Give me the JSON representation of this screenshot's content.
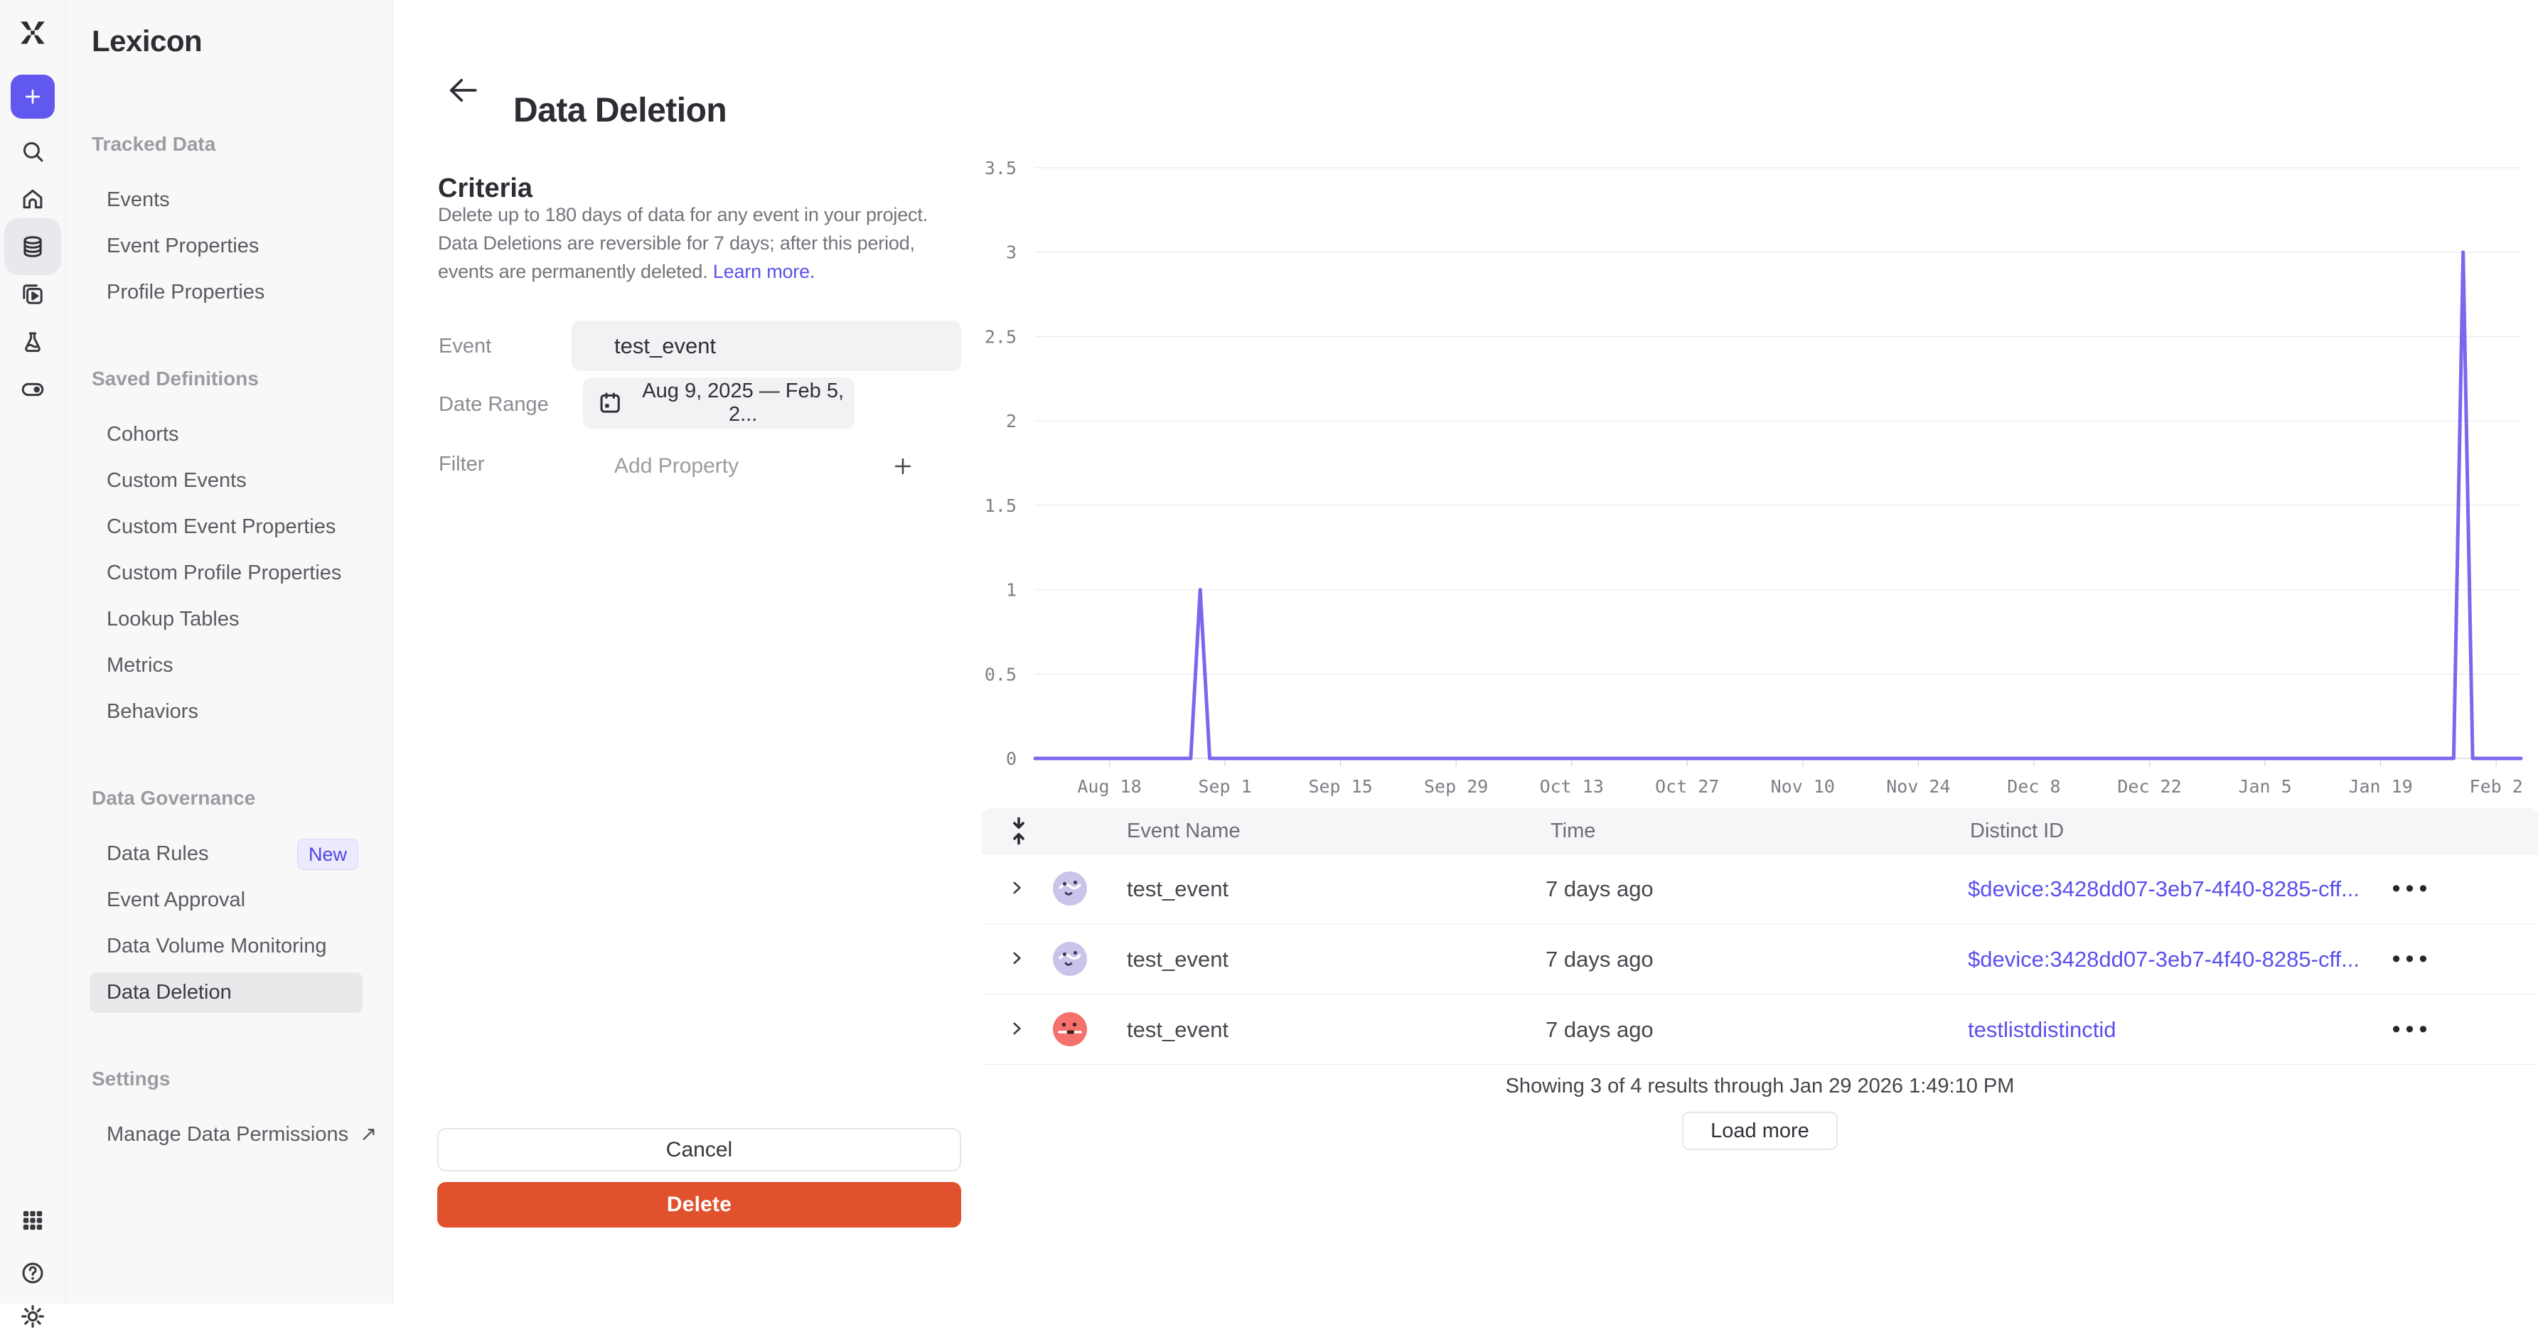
{
  "app": {
    "rail_icons": [
      "mixpanel-logo",
      "plus",
      "search",
      "home",
      "lexicon-database",
      "boards",
      "experiments-flask",
      "feature-flags-toggle",
      "apps-grid",
      "help",
      "settings-gear"
    ],
    "rail_active_icon": "lexicon-database"
  },
  "sidebar": {
    "title": "Lexicon",
    "sections": [
      {
        "label": "Tracked Data",
        "items": [
          {
            "label": "Events"
          },
          {
            "label": "Event Properties"
          },
          {
            "label": "Profile Properties"
          }
        ]
      },
      {
        "label": "Saved Definitions",
        "items": [
          {
            "label": "Cohorts"
          },
          {
            "label": "Custom Events"
          },
          {
            "label": "Custom Event Properties"
          },
          {
            "label": "Custom Profile Properties"
          },
          {
            "label": "Lookup Tables"
          },
          {
            "label": "Metrics"
          },
          {
            "label": "Behaviors"
          }
        ]
      },
      {
        "label": "Data Governance",
        "items": [
          {
            "label": "Data Rules",
            "badge": "New"
          },
          {
            "label": "Event Approval"
          },
          {
            "label": "Data Volume Monitoring"
          },
          {
            "label": "Data Deletion",
            "selected": true
          }
        ]
      },
      {
        "label": "Settings",
        "items": [
          {
            "label": "Manage Data Permissions",
            "external": true
          }
        ]
      }
    ]
  },
  "header": {
    "title": "Data Deletion"
  },
  "criteria": {
    "heading": "Criteria",
    "description_lines": [
      "Delete up to 180 days of data for any event in your project.",
      "Data Deletions are reversible for 7 days; after this period,",
      "events are permanently deleted."
    ],
    "learn_more_label": "Learn more.",
    "event_label": "Event",
    "event_value": "test_event",
    "date_range_label": "Date Range",
    "date_range_value": "Aug 9, 2025 — Feb 5, 2...",
    "filter_label": "Filter",
    "add_property_label": "Add Property",
    "cancel_label": "Cancel",
    "delete_label": "Delete"
  },
  "chart_data": {
    "type": "line",
    "title": "",
    "series_name": "test_event",
    "x_start_date": "Aug 9, 2025",
    "x_end_date": "Feb 5, 2026",
    "total_days": 180,
    "x_tick_labels": [
      "Aug 18",
      "Sep 1",
      "Sep 15",
      "Sep 29",
      "Oct 13",
      "Oct 27",
      "Nov 10",
      "Nov 24",
      "Dec 8",
      "Dec 22",
      "Jan 5",
      "Jan 19",
      "Feb 2"
    ],
    "x_tick_days": [
      9,
      23,
      37,
      51,
      65,
      79,
      93,
      107,
      121,
      135,
      149,
      163,
      177
    ],
    "y_ticks": [
      0,
      0.5,
      1,
      1.5,
      2,
      2.5,
      3,
      3.5
    ],
    "ylim": [
      0,
      3.5
    ],
    "baseline_value": 0,
    "spikes": [
      {
        "date": "Aug 29, 2025",
        "day": 20,
        "value": 1
      },
      {
        "date": "Jan 29, 2026",
        "day": 173,
        "value": 3
      }
    ],
    "note": "daily event counts; all days are 0 except the listed spikes",
    "line_color": "#7968ef",
    "grid": true,
    "legend": false
  },
  "table": {
    "columns": [
      "Event Name",
      "Time",
      "Distinct ID"
    ],
    "rows": [
      {
        "event_name": "test_event",
        "time": "7 days ago",
        "distinct_id": "$device:3428dd07-3eb7-4f40-8285-cff...",
        "avatar": "lavender"
      },
      {
        "event_name": "test_event",
        "time": "7 days ago",
        "distinct_id": "$device:3428dd07-3eb7-4f40-8285-cff...",
        "avatar": "lavender"
      },
      {
        "event_name": "test_event",
        "time": "7 days ago",
        "distinct_id": "testlistdistinctid",
        "avatar": "red"
      }
    ],
    "footer_text": "Showing 3 of 4 results through Jan 29 2026 1:49:10 PM",
    "load_more_label": "Load more"
  },
  "colors": {
    "accent_purple": "#6158f0",
    "link_purple": "#5a50ec",
    "chart_line": "#7968ef",
    "delete_red": "#e2512e",
    "new_badge_text": "#4f46e5",
    "new_badge_bg": "#eceafc",
    "avatar_lavender": "#c9c4e9",
    "avatar_red": "#f4716c",
    "sidebar_bg": "#f8f8f9",
    "selected_item_bg": "#e9e9ec"
  }
}
